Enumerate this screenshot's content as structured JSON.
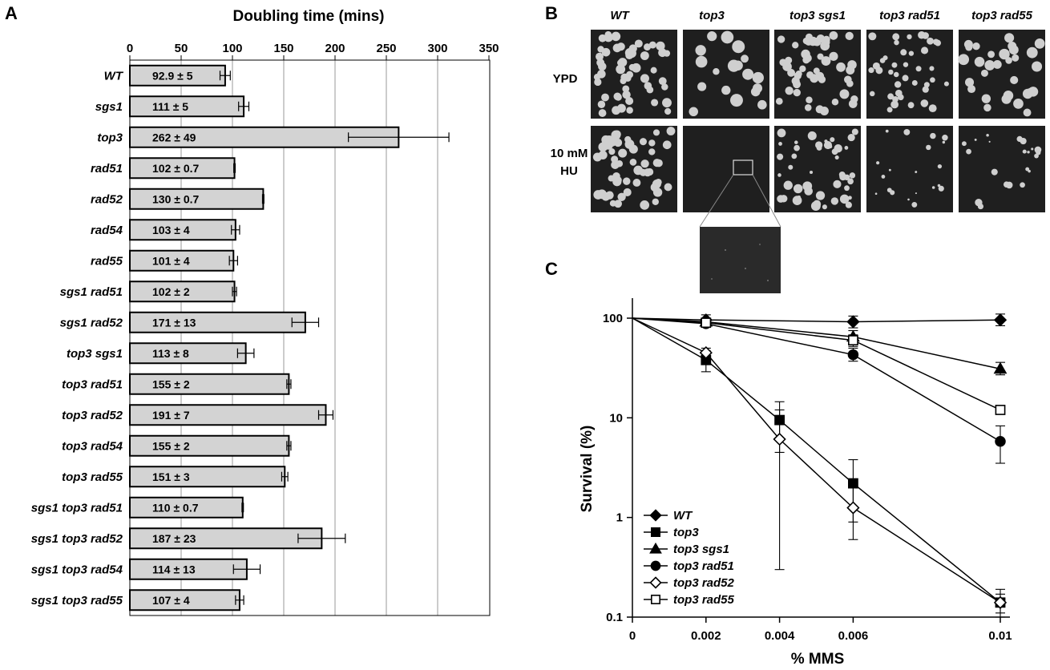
{
  "panels": {
    "a": "A",
    "b": "B",
    "c": "C"
  },
  "chart_data": [
    {
      "type": "bar",
      "orientation": "horizontal",
      "title": "Doubling time (mins)",
      "xlim": [
        0,
        350
      ],
      "xticks": [
        "0",
        "50",
        "100",
        "150",
        "200",
        "250",
        "300",
        "350"
      ],
      "grid": "vertical",
      "categories": [
        "WT",
        "sgs1",
        "top3",
        "rad51",
        "rad52",
        "rad54",
        "rad55",
        "sgs1 rad51",
        "sgs1 rad52",
        "top3 sgs1",
        "top3 rad51",
        "top3 rad52",
        "top3 rad54",
        "top3 rad55",
        "sgs1 top3 rad51",
        "sgs1 top3 rad52",
        "sgs1 top3 rad54",
        "sgs1 top3 rad55"
      ],
      "values": [
        92.9,
        111,
        262,
        102,
        130,
        103,
        101,
        102,
        171,
        113,
        155,
        191,
        155,
        151,
        110,
        187,
        114,
        107
      ],
      "errors": [
        5,
        5,
        49,
        0.7,
        0.7,
        4,
        4,
        2,
        13,
        8,
        2,
        7,
        2,
        3,
        0.7,
        23,
        13,
        4
      ],
      "value_labels": [
        "92.9 ± 5",
        "111 ± 5",
        "262 ± 49",
        "102 ± 0.7",
        "130 ± 0.7",
        "103 ± 4",
        "101 ± 4",
        "102 ± 2",
        "171 ± 13",
        "113 ± 8",
        "155 ± 2",
        "191 ± 7",
        "155 ± 2",
        "151 ± 3",
        "110 ± 0.7",
        "187 ± 23",
        "114 ± 13",
        "107 ± 4"
      ],
      "bar_color": "#d3d3d3"
    },
    {
      "type": "line",
      "xlabel": "% MMS",
      "ylabel": "Survival (%)",
      "yscale": "log",
      "ylim": [
        0.1,
        100
      ],
      "xticks": [
        "0",
        "0.002",
        "0.004",
        "0.006",
        "0.01"
      ],
      "x": [
        0,
        0.002,
        0.004,
        0.006,
        0.01
      ],
      "yticks": [
        "100",
        "10",
        "1",
        "0.1"
      ],
      "legend_position": "bottom-left",
      "series": [
        {
          "name": "WT",
          "marker": "diamond-filled",
          "points": [
            [
              0,
              100
            ],
            [
              0.002,
              96
            ],
            [
              0.006,
              92
            ],
            [
              0.01,
              96
            ]
          ],
          "errors": [
            [
              0.002,
              85,
              108
            ],
            [
              0.006,
              80,
              105
            ],
            [
              0.01,
              84,
              110
            ]
          ]
        },
        {
          "name": "top3",
          "marker": "square-filled",
          "points": [
            [
              0,
              100
            ],
            [
              0.002,
              38
            ],
            [
              0.004,
              9.5
            ],
            [
              0.006,
              2.2
            ],
            [
              0.01,
              0.14
            ]
          ],
          "errors": [
            [
              0.002,
              29,
              47
            ],
            [
              0.004,
              4.5,
              14.5
            ],
            [
              0.006,
              0.9,
              3.8
            ],
            [
              0.01,
              0.1,
              0.17
            ]
          ]
        },
        {
          "name": "top3 sgs1",
          "marker": "triangle-filled",
          "points": [
            [
              0,
              100
            ],
            [
              0.002,
              92
            ],
            [
              0.006,
              65
            ],
            [
              0.01,
              31
            ]
          ],
          "errors": [
            [
              0.006,
              55,
              75
            ],
            [
              0.01,
              27,
              36
            ]
          ]
        },
        {
          "name": "top3 rad51",
          "marker": "circle-filled",
          "points": [
            [
              0,
              100
            ],
            [
              0.002,
              88
            ],
            [
              0.006,
              43
            ],
            [
              0.01,
              5.8
            ]
          ],
          "errors": [
            [
              0.006,
              37,
              50
            ],
            [
              0.01,
              3.5,
              8.3
            ]
          ]
        },
        {
          "name": "top3 rad52",
          "marker": "diamond-open",
          "points": [
            [
              0,
              100
            ],
            [
              0.002,
              45
            ],
            [
              0.004,
              6.1
            ],
            [
              0.006,
              1.25
            ],
            [
              0.01,
              0.14
            ]
          ],
          "errors": [
            [
              0.002,
              40,
              50
            ],
            [
              0.004,
              0.3,
              12
            ],
            [
              0.006,
              0.6,
              2
            ],
            [
              0.01,
              0.11,
              0.19
            ]
          ]
        },
        {
          "name": "top3 rad55",
          "marker": "square-open",
          "points": [
            [
              0,
              100
            ],
            [
              0.002,
              90
            ],
            [
              0.006,
              60
            ],
            [
              0.01,
              12
            ]
          ],
          "errors": [
            [
              0.006,
              52,
              68
            ],
            [
              0.01,
              11,
              13
            ]
          ]
        }
      ]
    }
  ],
  "plates": {
    "genotypes": [
      "WT",
      "top3",
      "top3 sgs1",
      "top3 rad51",
      "top3 rad55"
    ],
    "conditions": [
      "YPD",
      "10 mM",
      "HU"
    ],
    "colors": {
      "plate": "#1f1f1f",
      "colony": "#cfcfcf"
    }
  }
}
